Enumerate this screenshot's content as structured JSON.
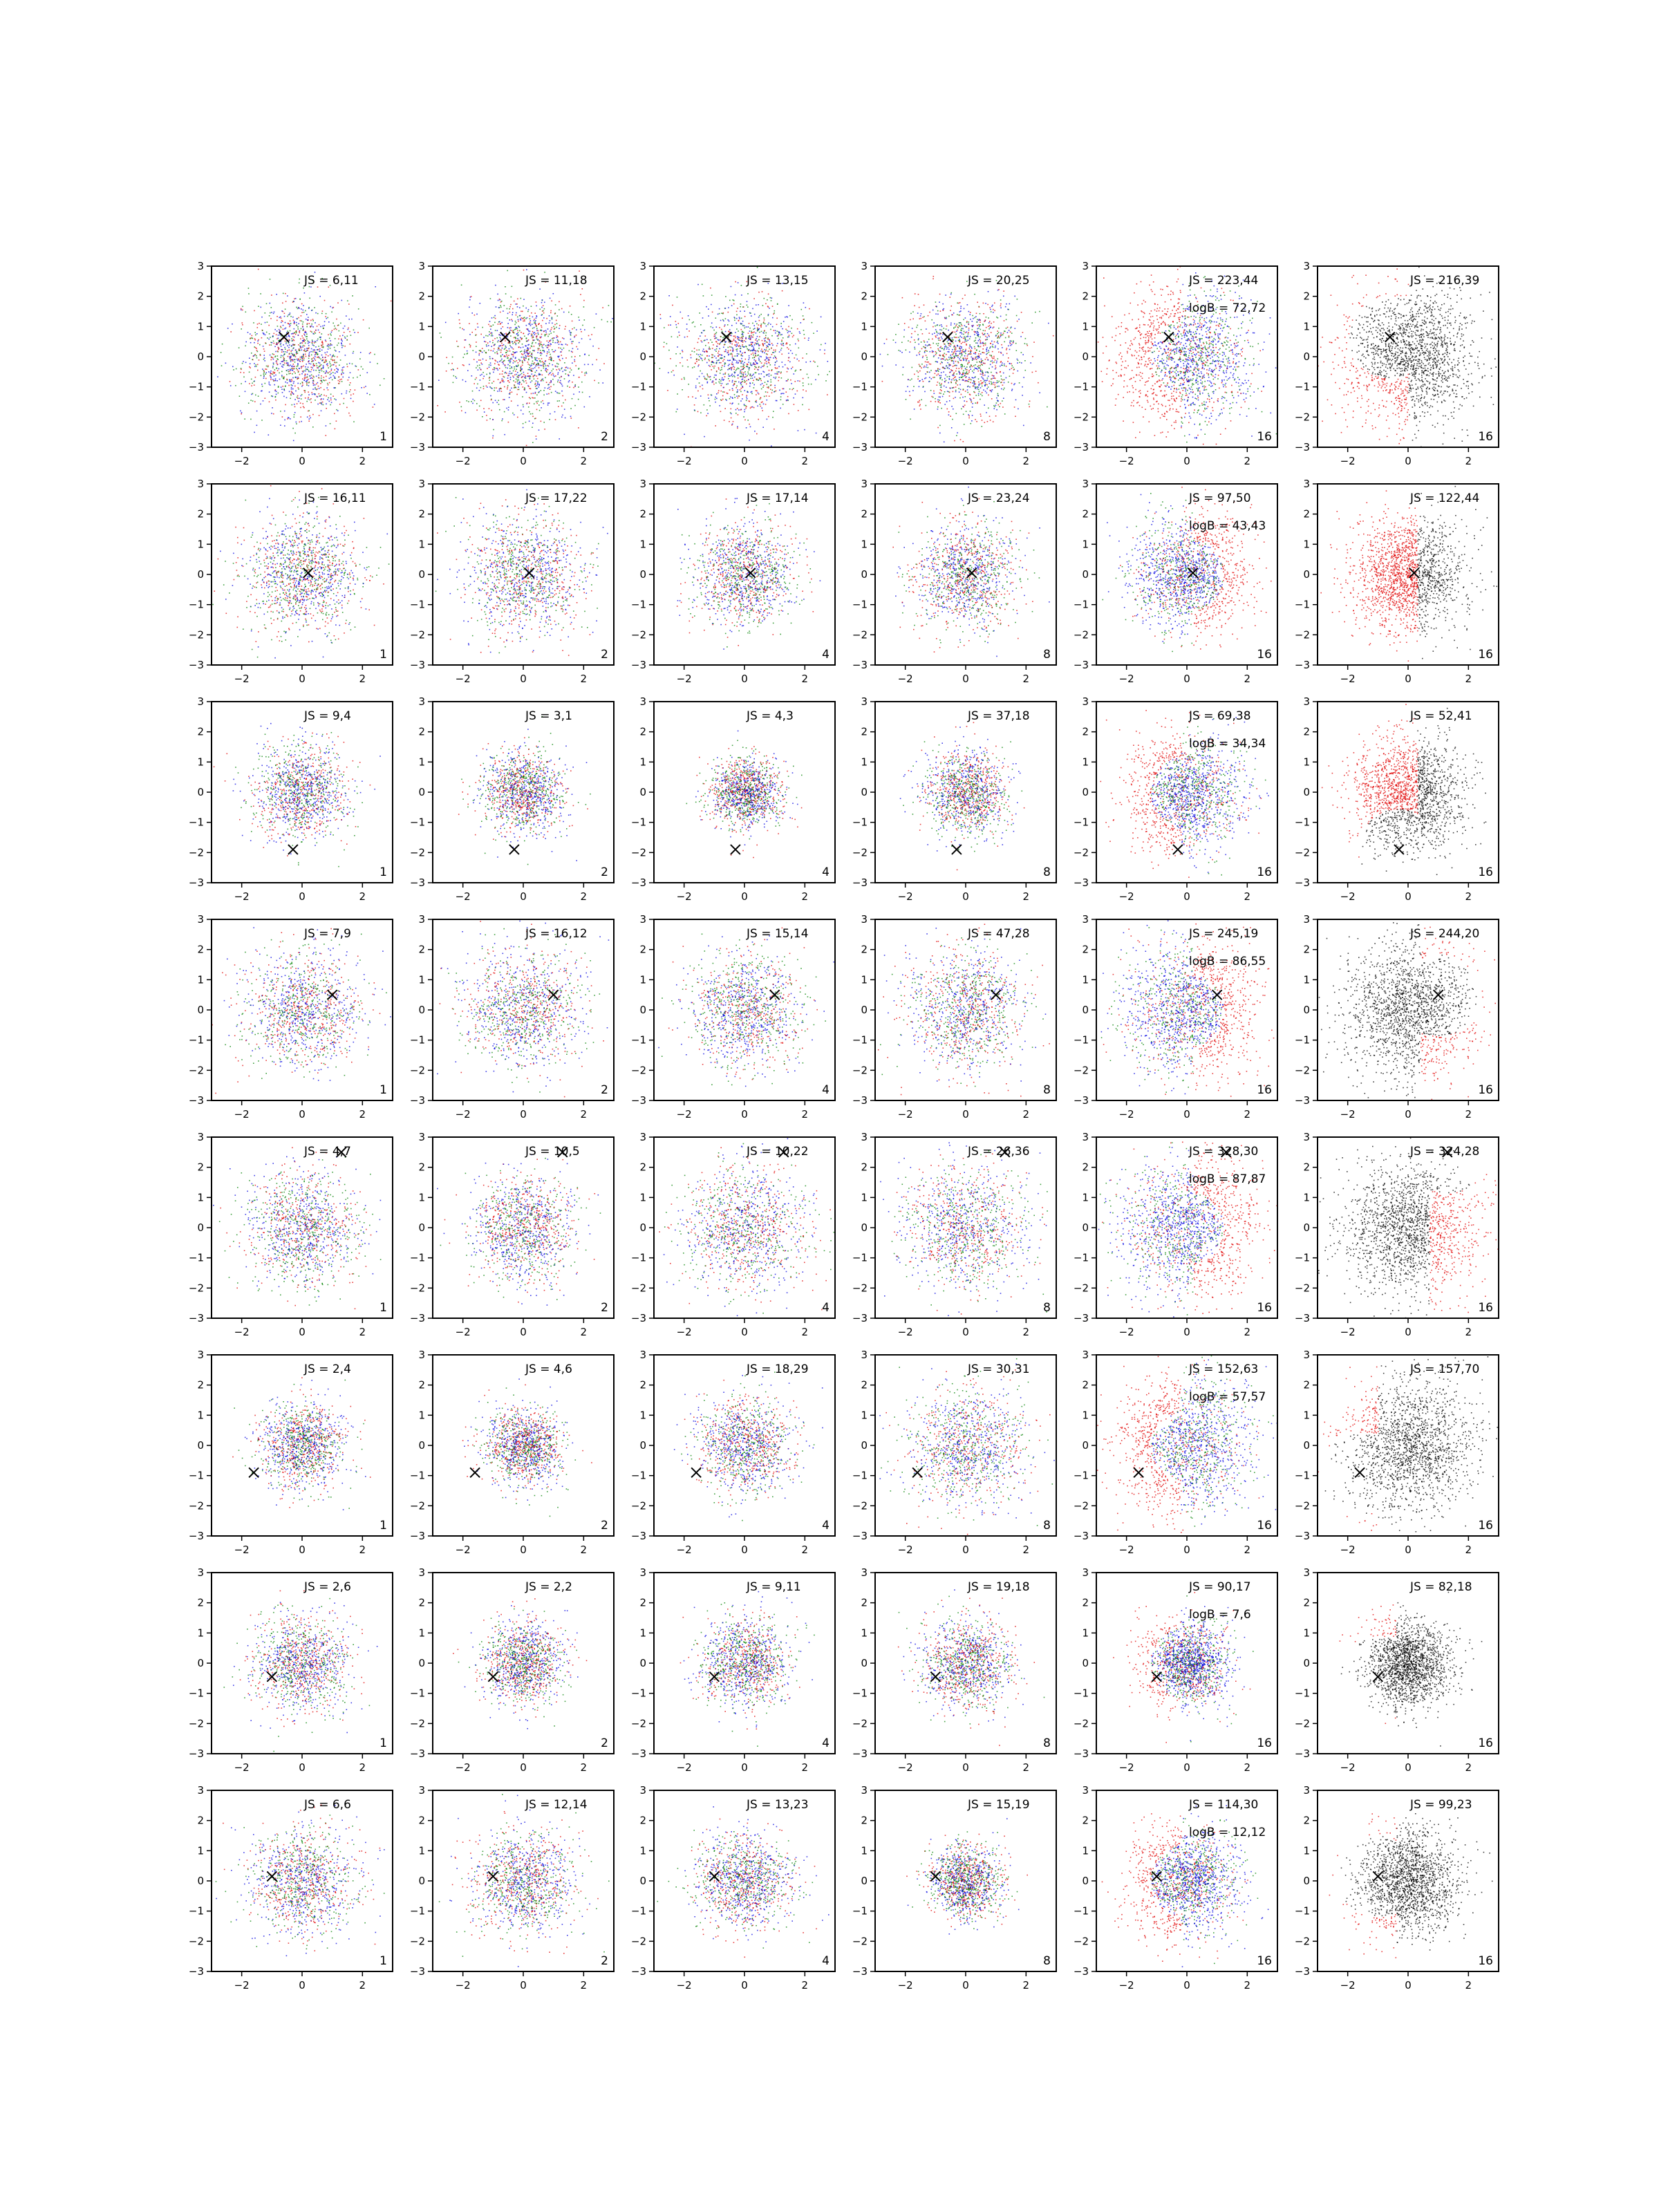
{
  "chart_data": {
    "type": "scatter",
    "layout": {
      "rows": 8,
      "cols": 6
    },
    "xlim": [
      -3,
      3
    ],
    "ylim": [
      -3,
      3
    ],
    "xticks": [
      -2,
      0,
      2
    ],
    "yticks": [
      -3,
      -2,
      -1,
      0,
      1,
      2,
      3
    ],
    "grid": false,
    "colors": {
      "red": "#e00000",
      "green": "#008000",
      "blue": "#0000e0",
      "black": "#000000"
    },
    "column_labels": [
      "1",
      "2",
      "4",
      "8",
      "16",
      "16"
    ],
    "rows": [
      {
        "marker": [
          -0.6,
          0.65
        ],
        "js": [
          "JS = 6,11",
          "JS = 11,18",
          "JS = 13,15",
          "JS = 20,25",
          "JS = 223,44",
          "JS = 216,39"
        ],
        "logb": "logB = 72,72",
        "spread": [
          1.35,
          1.4,
          1.4,
          1.35,
          1.5,
          1.5
        ]
      },
      {
        "marker": [
          0.2,
          0.05
        ],
        "js": [
          "JS = 16,11",
          "JS = 17,22",
          "JS = 17,14",
          "JS = 23,24",
          "JS = 97,50",
          "JS = 122,44"
        ],
        "logb": "logB = 43,43",
        "spread": [
          1.3,
          1.4,
          1.15,
          1.2,
          1.3,
          1.3
        ]
      },
      {
        "marker": [
          -0.3,
          -1.9
        ],
        "js": [
          "JS = 9,4",
          "JS = 3,1",
          "JS = 4,3",
          "JS = 37,18",
          "JS = 69,38",
          "JS = 52,41"
        ],
        "logb": "logB = 34,34",
        "spread": [
          1.05,
          0.95,
          0.8,
          0.95,
          1.3,
          1.25
        ]
      },
      {
        "marker": [
          1.0,
          0.5
        ],
        "js": [
          "JS = 7,9",
          "JS = 16,12",
          "JS = 15,14",
          "JS = 47,28",
          "JS = 245,19",
          "JS = 244,20"
        ],
        "logb": "logB = 86,55",
        "spread": [
          1.35,
          1.35,
          1.3,
          1.35,
          1.5,
          1.5
        ]
      },
      {
        "marker": [
          1.3,
          2.5
        ],
        "js": [
          "JS = 4,7",
          "JS = 10,5",
          "JS = 10,22",
          "JS = 26,36",
          "JS = 328,30",
          "JS = 324,28"
        ],
        "logb": "logB = 87,87",
        "spread": [
          1.3,
          1.2,
          1.45,
          1.45,
          1.55,
          1.55
        ]
      },
      {
        "marker": [
          -1.6,
          -0.9
        ],
        "js": [
          "JS = 2,4",
          "JS = 4,6",
          "JS = 18,29",
          "JS = 30,31",
          "JS = 152,63",
          "JS = 157,70"
        ],
        "logb": "logB = 57,57",
        "spread": [
          1.0,
          0.9,
          1.1,
          1.4,
          1.5,
          1.5
        ]
      },
      {
        "marker": [
          -1.0,
          -0.45
        ],
        "js": [
          "JS = 2,6",
          "JS = 2,2",
          "JS = 9,11",
          "JS = 19,18",
          "JS = 90,17",
          "JS = 82,18"
        ],
        "logb": "logB = 7,6",
        "spread": [
          1.1,
          0.95,
          1.0,
          1.0,
          0.95,
          0.95
        ]
      },
      {
        "marker": [
          -1.0,
          0.15
        ],
        "js": [
          "JS = 6,6",
          "JS = 12,14",
          "JS = 13,23",
          "JS = 15,19",
          "JS = 114,30",
          "JS = 99,23"
        ],
        "logb": "logB = 12,12",
        "spread": [
          1.25,
          1.2,
          1.1,
          0.85,
          1.2,
          1.15
        ]
      }
    ]
  }
}
